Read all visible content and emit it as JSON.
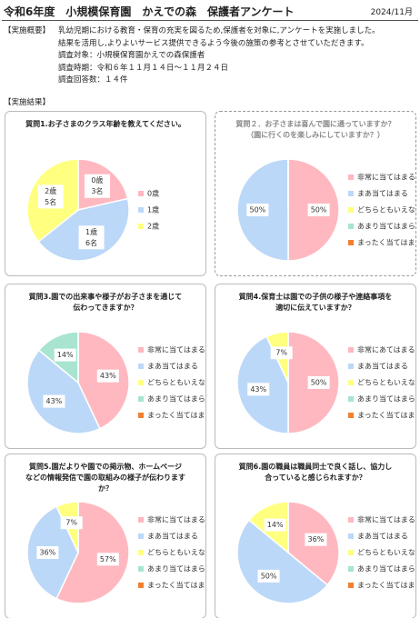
{
  "header": {
    "title": "令和6年度　小規模保育園　かえでの森　保護者アンケート",
    "date": "2024/11月"
  },
  "summary": {
    "label": "【実施概要】",
    "lines": [
      "乳幼児期における教育・保育の充実を図るため,保護者を対象に,アンケートを実施しました。",
      "結果を活用し,よりよいサービス提供できるよう今後の施策の参考とさせていただきます。",
      "調査対象：小規模保育園かえでの森保護者",
      "調査時期：令和６年１１月１４日～１１月２４日",
      "調査回答数：１４件"
    ]
  },
  "results_label": "【実施結果】",
  "chart_data": [
    {
      "type": "pie",
      "title": "質問1.お子さまのクラス年齢を教えてください。",
      "categories": [
        "0歳",
        "1歳",
        "2歳"
      ],
      "values": [
        3,
        6,
        5
      ],
      "value_labels": [
        "3名",
        "6名",
        "5名"
      ],
      "colors": [
        "#ffb8c0",
        "#bcd8f8",
        "#ffff80"
      ]
    },
    {
      "type": "pie",
      "title": "質問２．お子さまは喜んで園に通っていますか？（園に行くのを楽しみにしていますか？）",
      "categories": [
        "非常に当てはまる",
        "まあ当てはまる",
        "どちらともいえない",
        "あまり当てはまらない",
        "まったく当てはまらない"
      ],
      "values": [
        50,
        50,
        0,
        0,
        0
      ],
      "value_labels": [
        "50%",
        "50%",
        null,
        null,
        null
      ],
      "colors": [
        "#ffb8c0",
        "#bcd8f8",
        "#ffff80",
        "#a8e4d0",
        "#f08030"
      ]
    },
    {
      "type": "pie",
      "title": "質問3.園での出来事や様子がお子さまを通じて伝わってきますか？",
      "categories": [
        "非常に当てはまる",
        "まあ当てはまる",
        "どちらともいえない",
        "あまり当てはまらない",
        "まったく当てはまらない"
      ],
      "values": [
        43,
        43,
        0,
        14,
        0
      ],
      "value_labels": [
        "43%",
        "43%",
        null,
        "14%",
        null
      ],
      "colors": [
        "#ffb8c0",
        "#bcd8f8",
        "#ffff80",
        "#a8e4d0",
        "#f08030"
      ]
    },
    {
      "type": "pie",
      "title": "質問4.保育士は園での子供の様子や連絡事項を適切に伝えていますか？",
      "categories": [
        "非常にあてはまる",
        "まあ当てはまる",
        "どちらともいえない",
        "あまり当てはまらない",
        "まったく当てはまらない"
      ],
      "values": [
        50,
        43,
        7,
        0,
        0
      ],
      "value_labels": [
        "50%",
        "43%",
        "7%",
        null,
        null
      ],
      "colors": [
        "#ffb8c0",
        "#bcd8f8",
        "#ffff80",
        "#a8e4d0",
        "#f08030"
      ]
    },
    {
      "type": "pie",
      "title": "質問5.園だよりや園での掲示物、ホームページなどの情報発信で園の取組みの様子が伝わりますか？",
      "categories": [
        "非常に当てはまる",
        "まあ当てはまる",
        "どちらともいえない",
        "あまり当てはまらない",
        "まったく当てはまらない"
      ],
      "values": [
        57,
        36,
        7,
        0,
        0
      ],
      "value_labels": [
        "57%",
        "36%",
        "7%",
        null,
        null
      ],
      "colors": [
        "#ffb8c0",
        "#bcd8f8",
        "#ffff80",
        "#a8e4d0",
        "#f08030"
      ]
    },
    {
      "type": "pie",
      "title": "質問6.園の職員は職員同士で良く話し、協力し合っていると感じられますか？",
      "categories": [
        "非常に当てはまる",
        "まあ当てはまる",
        "どちらともいえない",
        "あまり当てはまらない",
        "まったく当てはまらない"
      ],
      "values": [
        36,
        50,
        14,
        0,
        0
      ],
      "value_labels": [
        "36%",
        "50%",
        "14%",
        null,
        null
      ],
      "colors": [
        "#ffb8c0",
        "#bcd8f8",
        "#ffff80",
        "#a8e4d0",
        "#f08030"
      ]
    }
  ]
}
